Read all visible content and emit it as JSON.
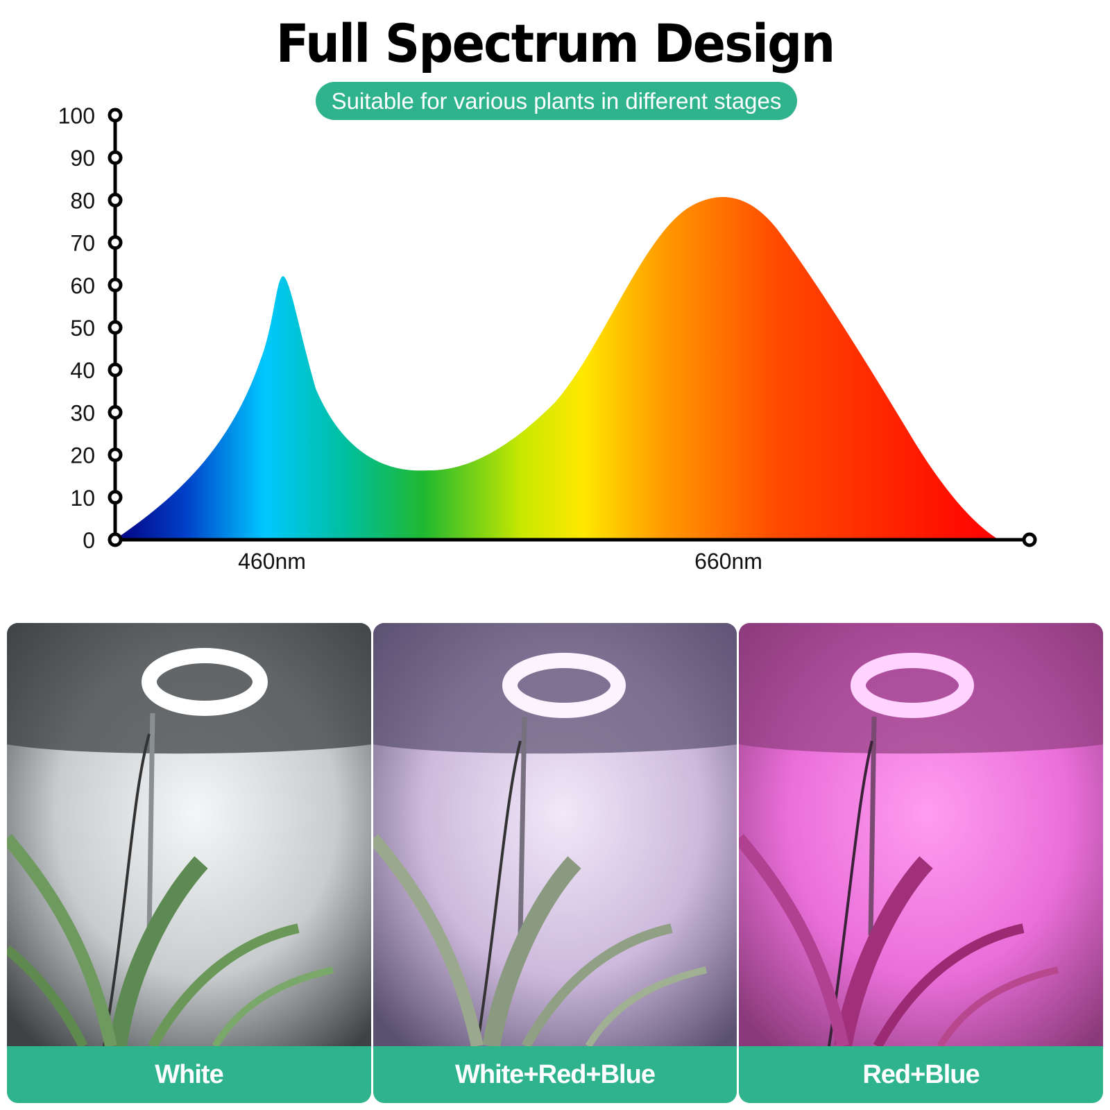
{
  "header": {
    "title": "Full Spectrum Design",
    "subtitle": "Suitable for various plants in different stages"
  },
  "chart_data": {
    "type": "area",
    "title": "",
    "xlabel": "",
    "ylabel": "",
    "ylim": [
      0,
      100
    ],
    "y_ticks": [
      "100",
      "90",
      "80",
      "70",
      "60",
      "50",
      "40",
      "30",
      "20",
      "10",
      "0"
    ],
    "x_labels": [
      "460nm",
      "660nm"
    ],
    "series": [
      {
        "x": [
          "",
          "",
          "",
          "",
          "460nm",
          "",
          "",
          "",
          "",
          "",
          "",
          "660nm",
          "",
          "",
          "",
          "",
          ""
        ],
        "values": [
          0,
          5,
          18,
          40,
          62,
          40,
          22,
          17,
          20,
          35,
          60,
          80,
          70,
          45,
          20,
          5,
          0
        ]
      }
    ]
  },
  "panels": [
    {
      "label": "White",
      "light": "#f4f6f8",
      "wall": "#c9ccce",
      "shade": "#3e4244"
    },
    {
      "label": "White+Red+Blue",
      "light": "#f1e8f8",
      "wall": "#cdb9dc",
      "shade": "#5a5070"
    },
    {
      "label": "Red+Blue",
      "light": "#ff9cf0",
      "wall": "#ea6fd9",
      "shade": "#8a3a7a"
    }
  ],
  "colors": {
    "accent": "#2fb38d"
  }
}
